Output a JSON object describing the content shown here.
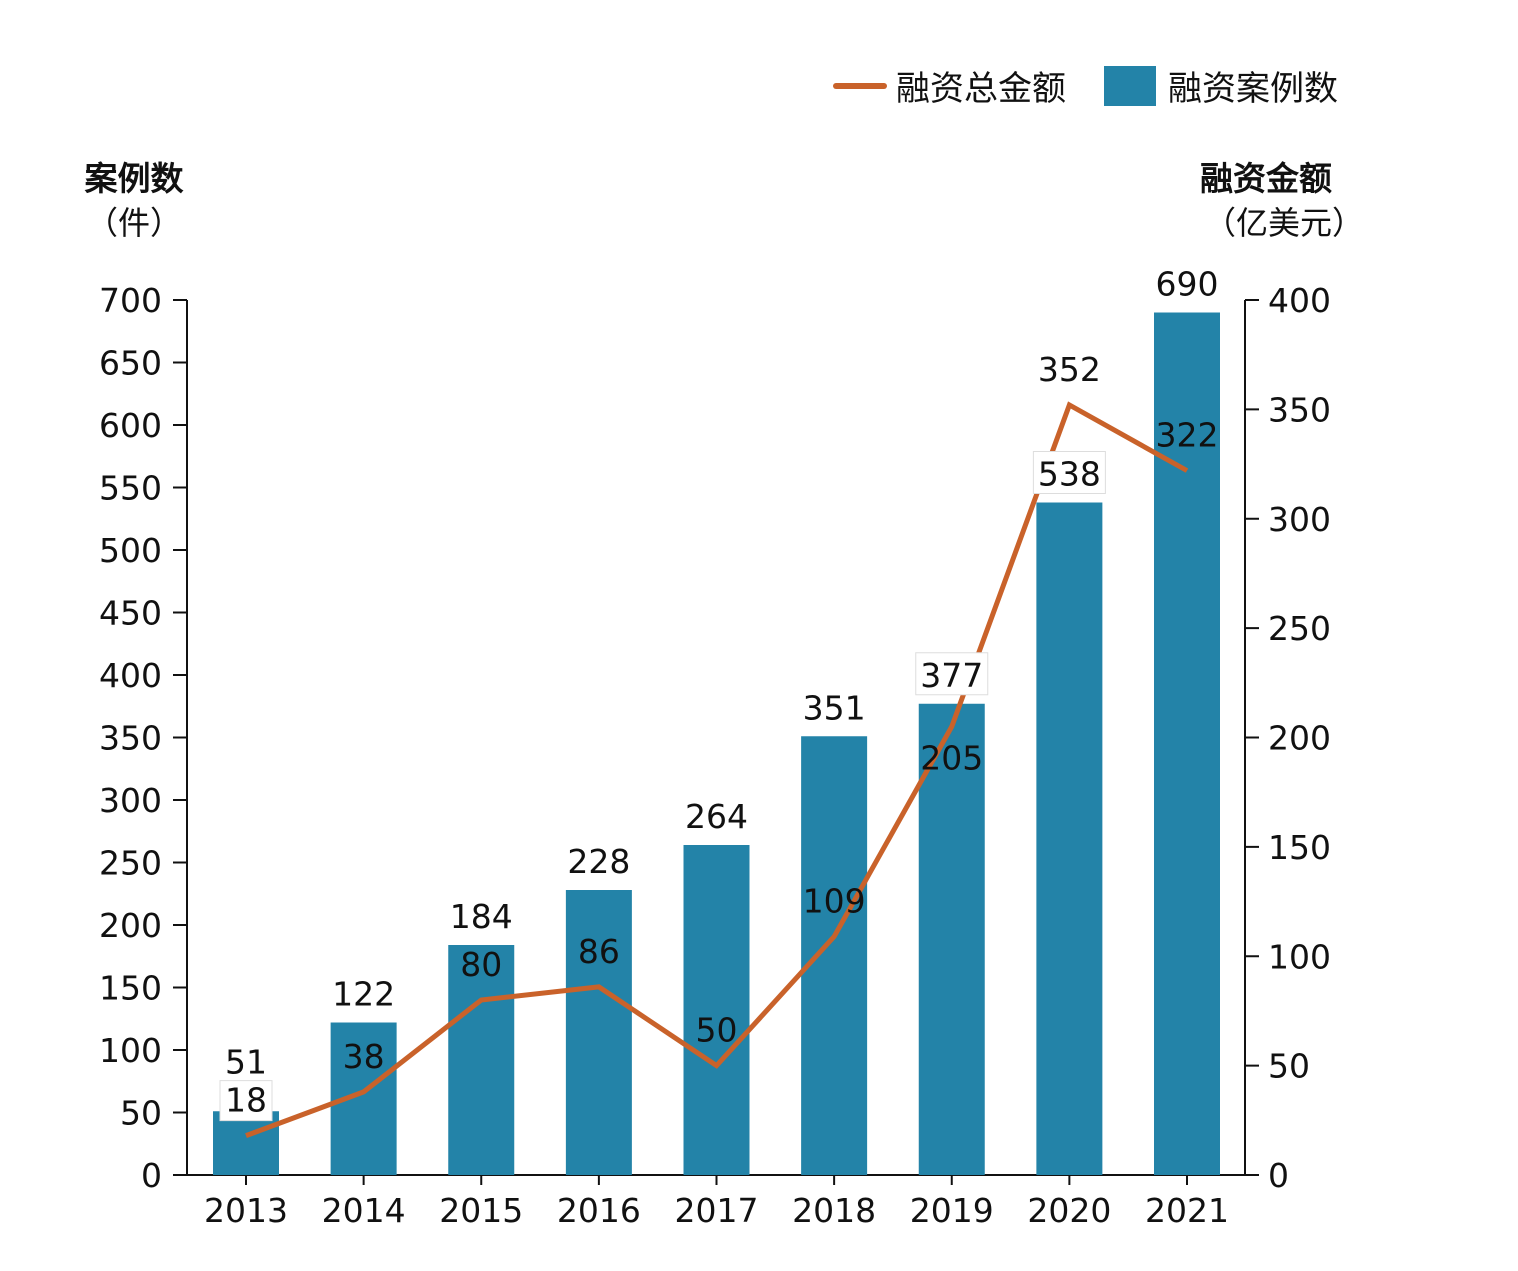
{
  "chart_data": {
    "type": "bar+line",
    "categories": [
      "2013",
      "2014",
      "2015",
      "2016",
      "2017",
      "2018",
      "2019",
      "2020",
      "2021"
    ],
    "series": [
      {
        "name": "融资案例数",
        "type": "bar",
        "axis": "left",
        "color": "#2383a8",
        "values": [
          51,
          122,
          184,
          228,
          264,
          351,
          377,
          538,
          690
        ]
      },
      {
        "name": "融资总金额",
        "type": "line",
        "axis": "right",
        "color": "#c9622a",
        "values": [
          18,
          38,
          80,
          86,
          50,
          109,
          205,
          352,
          322
        ]
      }
    ],
    "left_axis": {
      "title": "案例数",
      "unit": "（件）",
      "range": [
        0,
        700
      ],
      "ticks": [
        0,
        50,
        100,
        150,
        200,
        250,
        300,
        350,
        400,
        450,
        500,
        550,
        600,
        650,
        700
      ]
    },
    "right_axis": {
      "title": "融资金额",
      "unit": "（亿美元）",
      "range": [
        0,
        400
      ],
      "ticks": [
        0,
        50,
        100,
        150,
        200,
        250,
        300,
        350,
        400
      ]
    },
    "legend": {
      "placement": "top-right",
      "entries": [
        "融资总金额",
        "融资案例数"
      ]
    },
    "grid": false
  }
}
